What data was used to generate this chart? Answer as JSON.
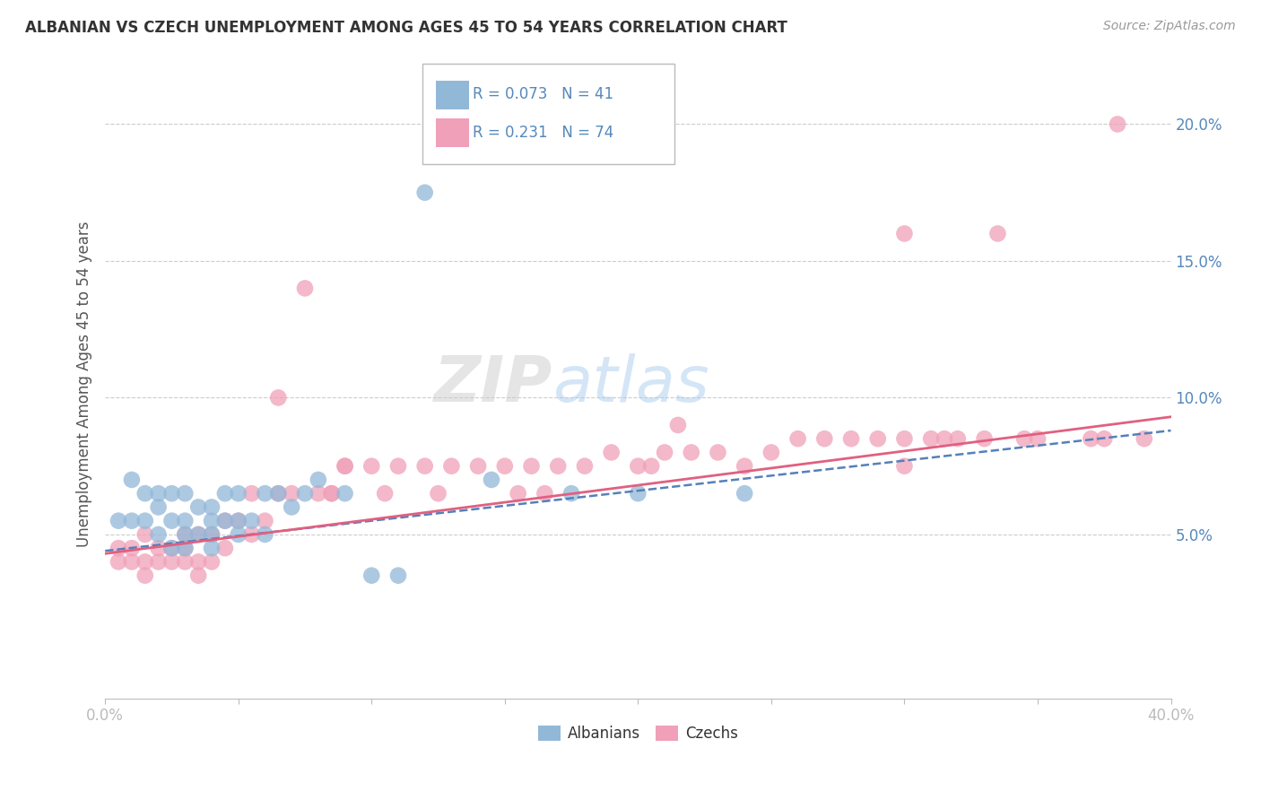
{
  "title": "ALBANIAN VS CZECH UNEMPLOYMENT AMONG AGES 45 TO 54 YEARS CORRELATION CHART",
  "source": "Source: ZipAtlas.com",
  "ylabel": "Unemployment Among Ages 45 to 54 years",
  "xlim": [
    0.0,
    0.4
  ],
  "ylim": [
    -0.01,
    0.22
  ],
  "ytick_positions": [
    0.05,
    0.1,
    0.15,
    0.2
  ],
  "ytick_labels": [
    "5.0%",
    "10.0%",
    "15.0%",
    "20.0%"
  ],
  "albanian_color": "#92B8D8",
  "czech_color": "#F0A0B8",
  "albanian_line_color": "#5580BB",
  "czech_line_color": "#E06080",
  "legend_R_albanian": "R = 0.073",
  "legend_N_albanian": "N = 41",
  "legend_R_czech": "R = 0.231",
  "legend_N_czech": "N = 74",
  "albanian_x": [
    0.005,
    0.01,
    0.01,
    0.015,
    0.015,
    0.02,
    0.02,
    0.02,
    0.025,
    0.025,
    0.025,
    0.03,
    0.03,
    0.03,
    0.03,
    0.035,
    0.035,
    0.04,
    0.04,
    0.04,
    0.04,
    0.045,
    0.045,
    0.05,
    0.05,
    0.05,
    0.055,
    0.06,
    0.06,
    0.065,
    0.07,
    0.075,
    0.08,
    0.09,
    0.1,
    0.11,
    0.12,
    0.145,
    0.175,
    0.2,
    0.24
  ],
  "albanian_y": [
    0.055,
    0.055,
    0.07,
    0.055,
    0.065,
    0.05,
    0.06,
    0.065,
    0.045,
    0.055,
    0.065,
    0.045,
    0.05,
    0.055,
    0.065,
    0.05,
    0.06,
    0.045,
    0.05,
    0.055,
    0.06,
    0.055,
    0.065,
    0.05,
    0.055,
    0.065,
    0.055,
    0.05,
    0.065,
    0.065,
    0.06,
    0.065,
    0.07,
    0.065,
    0.035,
    0.035,
    0.175,
    0.07,
    0.065,
    0.065,
    0.065
  ],
  "czech_x": [
    0.005,
    0.005,
    0.01,
    0.01,
    0.015,
    0.015,
    0.02,
    0.02,
    0.025,
    0.025,
    0.03,
    0.03,
    0.03,
    0.035,
    0.035,
    0.04,
    0.04,
    0.045,
    0.045,
    0.05,
    0.055,
    0.055,
    0.06,
    0.065,
    0.07,
    0.075,
    0.08,
    0.085,
    0.09,
    0.1,
    0.105,
    0.11,
    0.12,
    0.125,
    0.13,
    0.14,
    0.15,
    0.16,
    0.165,
    0.17,
    0.18,
    0.19,
    0.2,
    0.205,
    0.21,
    0.22,
    0.23,
    0.24,
    0.25,
    0.26,
    0.27,
    0.28,
    0.29,
    0.3,
    0.31,
    0.32,
    0.33,
    0.335,
    0.345,
    0.35,
    0.37,
    0.375,
    0.38,
    0.39,
    0.3,
    0.3,
    0.315,
    0.215,
    0.155,
    0.065,
    0.085,
    0.09,
    0.035,
    0.015
  ],
  "czech_y": [
    0.04,
    0.045,
    0.04,
    0.045,
    0.04,
    0.05,
    0.04,
    0.045,
    0.04,
    0.045,
    0.04,
    0.045,
    0.05,
    0.04,
    0.05,
    0.04,
    0.05,
    0.045,
    0.055,
    0.055,
    0.05,
    0.065,
    0.055,
    0.1,
    0.065,
    0.14,
    0.065,
    0.065,
    0.075,
    0.075,
    0.065,
    0.075,
    0.075,
    0.065,
    0.075,
    0.075,
    0.075,
    0.075,
    0.065,
    0.075,
    0.075,
    0.08,
    0.075,
    0.075,
    0.08,
    0.08,
    0.08,
    0.075,
    0.08,
    0.085,
    0.085,
    0.085,
    0.085,
    0.085,
    0.085,
    0.085,
    0.085,
    0.16,
    0.085,
    0.085,
    0.085,
    0.085,
    0.2,
    0.085,
    0.075,
    0.16,
    0.085,
    0.09,
    0.065,
    0.065,
    0.065,
    0.075,
    0.035,
    0.035
  ],
  "background_color": "#FFFFFF",
  "grid_color": "#CCCCCC",
  "watermark_zip_color": "#CCCCCC",
  "watermark_atlas_color": "#AACCEE"
}
